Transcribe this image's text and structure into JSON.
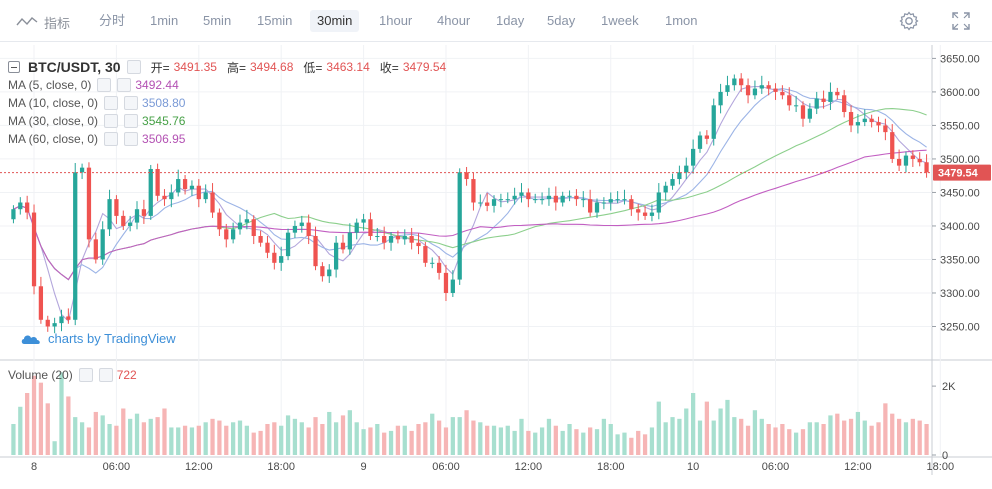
{
  "toolbar": {
    "indicators_label": "指标",
    "timeframes": [
      {
        "label": "分时",
        "active": false
      },
      {
        "label": "1min",
        "active": false
      },
      {
        "label": "5min",
        "active": false
      },
      {
        "label": "15min",
        "active": false
      },
      {
        "label": "30min",
        "active": true
      },
      {
        "label": "1hour",
        "active": false
      },
      {
        "label": "4hour",
        "active": false
      },
      {
        "label": "1day",
        "active": false
      },
      {
        "label": "5day",
        "active": false
      },
      {
        "label": "1week",
        "active": false
      },
      {
        "label": "1mon",
        "active": false
      }
    ],
    "icons": [
      "indicator-icon",
      "settings-gear-icon",
      "fullscreen-icon"
    ]
  },
  "legend": {
    "symbol": "BTC/USDT, 30",
    "open_label": "开=",
    "open": "3491.35",
    "high_label": "高=",
    "high": "3494.68",
    "low_label": "低=",
    "low": "3463.14",
    "close_label": "收=",
    "close": "3479.54",
    "ma": [
      {
        "label": "MA (5, close, 0)",
        "value": "3492.44",
        "color": "#b351b3"
      },
      {
        "label": "MA (10, close, 0)",
        "value": "3508.80",
        "color": "#7a9ad6"
      },
      {
        "label": "MA (30, close, 0)",
        "value": "3545.76",
        "color": "#46a046"
      },
      {
        "label": "MA (60, close, 0)",
        "value": "3506.95",
        "color": "#b351b3"
      }
    ]
  },
  "volume_legend": {
    "label": "Volume (20)",
    "value": "722"
  },
  "watermark": "charts by TradingView",
  "colors": {
    "up": "#26a69a",
    "down": "#ef5350",
    "vol_up": "#a7dfcf",
    "vol_down": "#f6b5b5",
    "ma5": "#b3a6dc",
    "ma10": "#9cb4e6",
    "ma30": "#8ccf8c",
    "ma60": "#c25fc2",
    "price_line": "#e15454"
  },
  "chart_data": {
    "type": "candlestick",
    "symbol": "BTC/USDT",
    "interval": "30",
    "ylim": [
      3200,
      3670
    ],
    "y_ticks": [
      "3650.00",
      "3600.00",
      "3550.00",
      "3500.00",
      "3450.00",
      "3400.00",
      "3350.00",
      "3300.00",
      "3250.00"
    ],
    "x_tick_labels": [
      "8",
      "06:00",
      "12:00",
      "18:00",
      "9",
      "06:00",
      "12:00",
      "18:00",
      "10",
      "06:00",
      "12:00",
      "18:00"
    ],
    "last_price": 3479.54,
    "last_price_label": "3479.54",
    "volume_ticks": [
      "2K",
      "0"
    ],
    "volume_ylim": [
      0,
      2700
    ],
    "closes": [
      3425,
      3435,
      3420,
      3310,
      3260,
      3250,
      3255,
      3265,
      3260,
      3480,
      3487,
      3380,
      3350,
      3395,
      3440,
      3415,
      3400,
      3405,
      3425,
      3415,
      3485,
      3445,
      3440,
      3450,
      3470,
      3455,
      3460,
      3440,
      3450,
      3420,
      3395,
      3380,
      3395,
      3405,
      3410,
      3385,
      3375,
      3360,
      3345,
      3355,
      3390,
      3400,
      3405,
      3385,
      3340,
      3325,
      3335,
      3375,
      3365,
      3390,
      3405,
      3410,
      3385,
      3385,
      3375,
      3385,
      3380,
      3385,
      3375,
      3370,
      3345,
      3345,
      3330,
      3300,
      3320,
      3480,
      3470,
      3435,
      3435,
      3430,
      3440,
      3440,
      3440,
      3445,
      3450,
      3440,
      3440,
      3440,
      3445,
      3435,
      3445,
      3445,
      3440,
      3440,
      3420,
      3435,
      3435,
      3440,
      3440,
      3440,
      3425,
      3420,
      3415,
      3420,
      3450,
      3460,
      3470,
      3480,
      3490,
      3515,
      3535,
      3530,
      3580,
      3600,
      3610,
      3620,
      3610,
      3595,
      3605,
      3610,
      3605,
      3600,
      3595,
      3580,
      3580,
      3560,
      3575,
      3590,
      3585,
      3600,
      3595,
      3570,
      3550,
      3555,
      3560,
      3555,
      3550,
      3540,
      3500,
      3490,
      3505,
      3500,
      3495,
      3480
    ],
    "volumes": [
      900,
      1400,
      1800,
      2300,
      2100,
      1500,
      400,
      2400,
      1700,
      1100,
      950,
      800,
      1250,
      1150,
      900,
      850,
      1350,
      1050,
      1200,
      950,
      1050,
      1100,
      1350,
      800,
      800,
      850,
      800,
      850,
      950,
      1050,
      1000,
      850,
      950,
      1000,
      850,
      650,
      700,
      900,
      950,
      850,
      1150,
      1050,
      950,
      800,
      1100,
      900,
      1250,
      950,
      1150,
      1300,
      950,
      750,
      800,
      900,
      650,
      700,
      850,
      850,
      700,
      900,
      950,
      1200,
      1000,
      800,
      1100,
      1100,
      1300,
      1000,
      950,
      850,
      850,
      800,
      850,
      700,
      1050,
      700,
      650,
      800,
      1050,
      850,
      700,
      900,
      750,
      650,
      800,
      750,
      1050,
      900,
      600,
      650,
      500,
      700,
      600,
      800,
      1550,
      950,
      1100,
      1050,
      1350,
      1800,
      1000,
      1550,
      1000,
      1350,
      1600,
      1100,
      1050,
      850,
      1300,
      1050,
      900,
      800,
      900,
      750,
      650,
      750,
      950,
      950,
      900,
      1150,
      1200,
      1000,
      1050,
      1250,
      1000,
      850,
      950,
      1500,
      1200,
      1050,
      950,
      1050,
      1000,
      900
    ]
  }
}
